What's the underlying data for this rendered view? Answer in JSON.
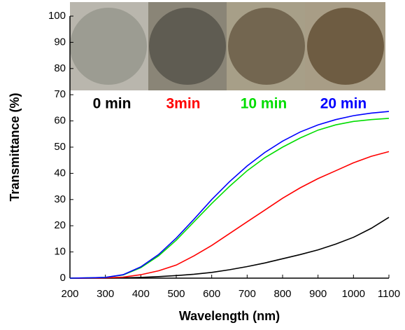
{
  "chart_data": {
    "type": "line",
    "x_label": "Wavelength (nm)",
    "y_label": "Transmittance (%)",
    "x": [
      200,
      250,
      300,
      350,
      400,
      450,
      500,
      550,
      600,
      650,
      700,
      750,
      800,
      850,
      900,
      950,
      1000,
      1050,
      1100
    ],
    "series": [
      {
        "name": "0 min",
        "color": "#000000",
        "values": [
          0,
          0,
          0,
          0.1,
          0.3,
          0.6,
          1.0,
          1.5,
          2.2,
          3.2,
          4.4,
          5.8,
          7.4,
          9,
          10.8,
          13,
          15.6,
          19,
          23.2
        ]
      },
      {
        "name": "3min",
        "color": "#ff0000",
        "values": [
          0,
          0,
          0.1,
          0.4,
          1.3,
          2.8,
          5,
          8.5,
          12.5,
          17,
          21.5,
          26,
          30.5,
          34.5,
          38,
          41,
          44,
          46.5,
          48.3
        ]
      },
      {
        "name": "10 min",
        "color": "#00dd00",
        "values": [
          0,
          0.1,
          0.3,
          1.2,
          4,
          8.5,
          14.5,
          21.5,
          28.5,
          35,
          41,
          46,
          50,
          53.5,
          56.5,
          58.5,
          59.8,
          60.5,
          61
        ]
      },
      {
        "name": "20 min",
        "color": "#0000ff",
        "values": [
          0,
          0.1,
          0.3,
          1.3,
          4.3,
          9,
          15.3,
          22.5,
          30,
          36.8,
          42.8,
          48,
          52.3,
          55.8,
          58.5,
          60.5,
          62,
          63,
          63.6
        ]
      }
    ],
    "xlim": [
      200,
      1100
    ],
    "xticks": [
      200,
      300,
      400,
      500,
      600,
      700,
      800,
      900,
      1000,
      1100
    ],
    "ylim": [
      0,
      100
    ],
    "yticks": [
      0,
      10,
      20,
      30,
      40,
      50,
      60,
      70,
      80,
      90,
      100
    ]
  }
}
